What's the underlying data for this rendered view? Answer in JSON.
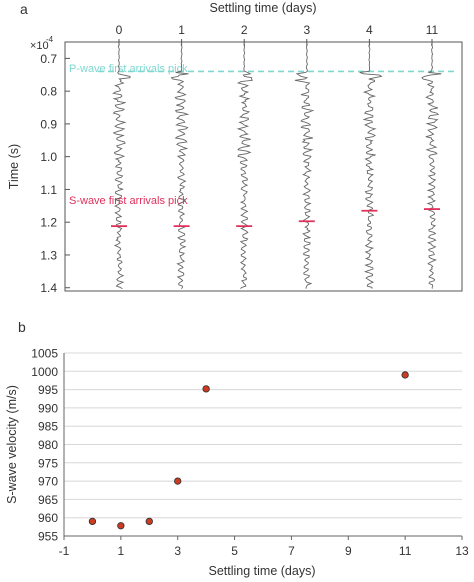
{
  "panel_a_label": "a",
  "panel_b_label": "b",
  "chart_data": [
    {
      "type": "line",
      "panel": "a",
      "title": "Settling time (days)",
      "ylabel": "Time (s)",
      "y_multiplier": "×10^-4",
      "y_multiplier_base": "×10",
      "y_multiplier_exp": "-4",
      "ylim": [
        0.65,
        1.41
      ],
      "y_inverted": true,
      "yticks": [
        0.7,
        0.8,
        0.9,
        1.0,
        1.1,
        1.2,
        1.3,
        1.4
      ],
      "ytick_labels": [
        "0.7",
        "0.8",
        "0.9",
        "1.0",
        "1.1",
        "1.2",
        "1.3",
        "1.4"
      ],
      "traces": [
        "0",
        "1",
        "2",
        "3",
        "4",
        "11"
      ],
      "p_wave_pick": 0.74,
      "s_wave_picks": [
        1.212,
        1.212,
        1.212,
        1.197,
        1.165,
        1.16
      ],
      "annotations": {
        "p_wave": "P-wave first arrivals pick",
        "s_wave": "S-wave first arrivals pick"
      },
      "colors": {
        "p_pick": "#7fd8d0",
        "s_pick": "#e0305a",
        "trace": "#666666"
      },
      "grid": false
    },
    {
      "type": "scatter",
      "panel": "b",
      "xlabel": "Settling time (days)",
      "ylabel": "S-wave velocity (m/s)",
      "xlim": [
        -1,
        13
      ],
      "ylim": [
        955,
        1005
      ],
      "xticks": [
        -1,
        1,
        3,
        5,
        7,
        9,
        11,
        13
      ],
      "xtick_labels": [
        "-1",
        "1",
        "3",
        "5",
        "7",
        "9",
        "11",
        "13"
      ],
      "yticks": [
        955,
        960,
        965,
        970,
        975,
        980,
        985,
        990,
        995,
        1000,
        1005
      ],
      "ytick_labels": [
        "955",
        "960",
        "965",
        "970",
        "975",
        "980",
        "985",
        "990",
        "995",
        "1000",
        "1005"
      ],
      "x": [
        0,
        1,
        2,
        3,
        4,
        11
      ],
      "y": [
        959,
        957.8,
        959,
        970,
        995.2,
        999
      ],
      "grid": true,
      "colors": {
        "marker_fill": "#d03a20",
        "marker_edge": "#333333",
        "grid": "#d8d8d8"
      }
    }
  ]
}
